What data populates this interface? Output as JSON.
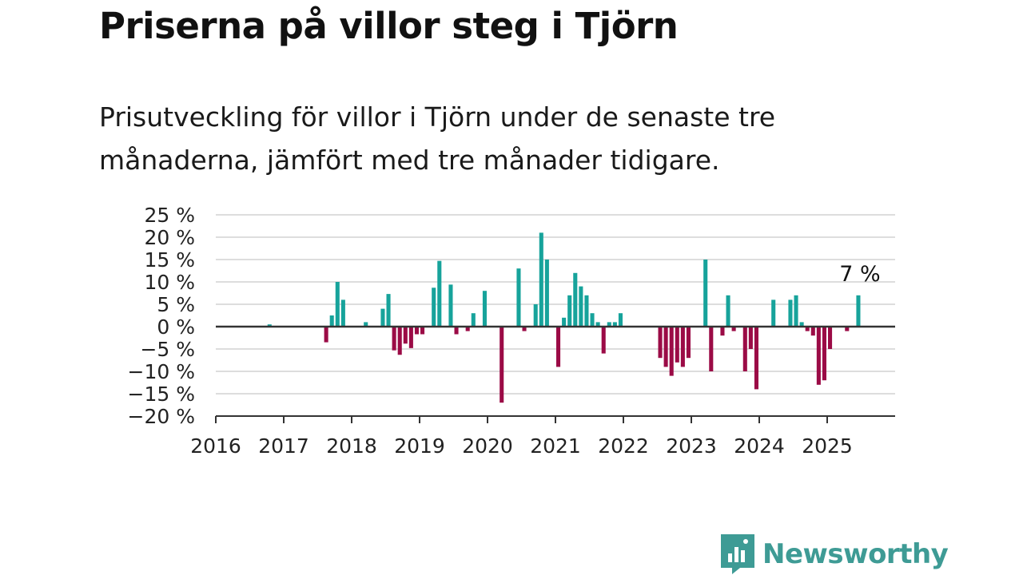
{
  "title": "Priserna på villor steg i Tjörn",
  "subtitle": "Prisutveckling för villor i Tjörn under de senaste tre månaderna, jämfört med tre månader tidigare.",
  "brand": {
    "name": "Newsworthy",
    "icon": "newsworthy-logo-icon"
  },
  "colors": {
    "positive": "#17a39b",
    "negative": "#9b0b46",
    "grid": "#dddddd",
    "axis": "#333333",
    "brand": "#3e9b95"
  },
  "chart_data": {
    "type": "bar",
    "x_axis": {
      "type": "date",
      "ticks": [
        "2016",
        "2017",
        "2018",
        "2019",
        "2020",
        "2021",
        "2022",
        "2023",
        "2024",
        "2025"
      ],
      "range": [
        "2016-01",
        "2025-12"
      ]
    },
    "y_axis": {
      "ticks": [
        "25 %",
        "20 %",
        "15 %",
        "10 %",
        "5 %",
        "0 %",
        "−5 %",
        "−10 %",
        "−15 %",
        "−20 %"
      ],
      "range": [
        -20,
        25
      ],
      "unit": "%"
    },
    "grid": true,
    "annotation": {
      "text": "7 %",
      "x": "2025-06"
    },
    "bars": [
      {
        "x": "2016-10",
        "y": 0.5
      },
      {
        "x": "2017-08",
        "y": -3.5
      },
      {
        "x": "2017-09",
        "y": 2.5
      },
      {
        "x": "2017-10",
        "y": 10
      },
      {
        "x": "2017-11",
        "y": 6
      },
      {
        "x": "2018-03",
        "y": 1
      },
      {
        "x": "2018-06",
        "y": 4
      },
      {
        "x": "2018-07",
        "y": 7.3
      },
      {
        "x": "2018-08",
        "y": -5.3
      },
      {
        "x": "2018-09",
        "y": -6.3
      },
      {
        "x": "2018-10",
        "y": -3.8
      },
      {
        "x": "2018-11",
        "y": -4.8
      },
      {
        "x": "2018-12",
        "y": -1.7
      },
      {
        "x": "2019-01",
        "y": -1.7
      },
      {
        "x": "2019-03",
        "y": 8.7
      },
      {
        "x": "2019-04",
        "y": 14.7
      },
      {
        "x": "2019-06",
        "y": 9.4
      },
      {
        "x": "2019-07",
        "y": -1.7
      },
      {
        "x": "2019-09",
        "y": -1
      },
      {
        "x": "2019-10",
        "y": 3
      },
      {
        "x": "2019-12",
        "y": 8
      },
      {
        "x": "2020-03",
        "y": -17
      },
      {
        "x": "2020-06",
        "y": 13
      },
      {
        "x": "2020-07",
        "y": -1
      },
      {
        "x": "2020-09",
        "y": 5
      },
      {
        "x": "2020-10",
        "y": 21
      },
      {
        "x": "2020-11",
        "y": 15
      },
      {
        "x": "2021-01",
        "y": -9
      },
      {
        "x": "2021-02",
        "y": 2
      },
      {
        "x": "2021-03",
        "y": 7
      },
      {
        "x": "2021-04",
        "y": 12
      },
      {
        "x": "2021-05",
        "y": 9
      },
      {
        "x": "2021-06",
        "y": 7
      },
      {
        "x": "2021-07",
        "y": 3
      },
      {
        "x": "2021-08",
        "y": 1
      },
      {
        "x": "2021-09",
        "y": -6
      },
      {
        "x": "2021-10",
        "y": 1
      },
      {
        "x": "2021-11",
        "y": 1
      },
      {
        "x": "2021-12",
        "y": 3
      },
      {
        "x": "2022-07",
        "y": -7
      },
      {
        "x": "2022-08",
        "y": -9
      },
      {
        "x": "2022-09",
        "y": -11
      },
      {
        "x": "2022-10",
        "y": -8
      },
      {
        "x": "2022-11",
        "y": -9
      },
      {
        "x": "2022-12",
        "y": -7
      },
      {
        "x": "2023-03",
        "y": 15
      },
      {
        "x": "2023-04",
        "y": -10
      },
      {
        "x": "2023-06",
        "y": -2
      },
      {
        "x": "2023-07",
        "y": 7
      },
      {
        "x": "2023-08",
        "y": -1
      },
      {
        "x": "2023-10",
        "y": -10
      },
      {
        "x": "2023-11",
        "y": -5
      },
      {
        "x": "2023-12",
        "y": -14
      },
      {
        "x": "2024-03",
        "y": 6
      },
      {
        "x": "2024-06",
        "y": 6
      },
      {
        "x": "2024-07",
        "y": 7
      },
      {
        "x": "2024-08",
        "y": 1
      },
      {
        "x": "2024-09",
        "y": -1
      },
      {
        "x": "2024-10",
        "y": -2
      },
      {
        "x": "2024-11",
        "y": -13
      },
      {
        "x": "2024-12",
        "y": -12
      },
      {
        "x": "2025-01",
        "y": -5
      },
      {
        "x": "2025-04",
        "y": -1
      },
      {
        "x": "2025-06",
        "y": 7
      }
    ]
  }
}
